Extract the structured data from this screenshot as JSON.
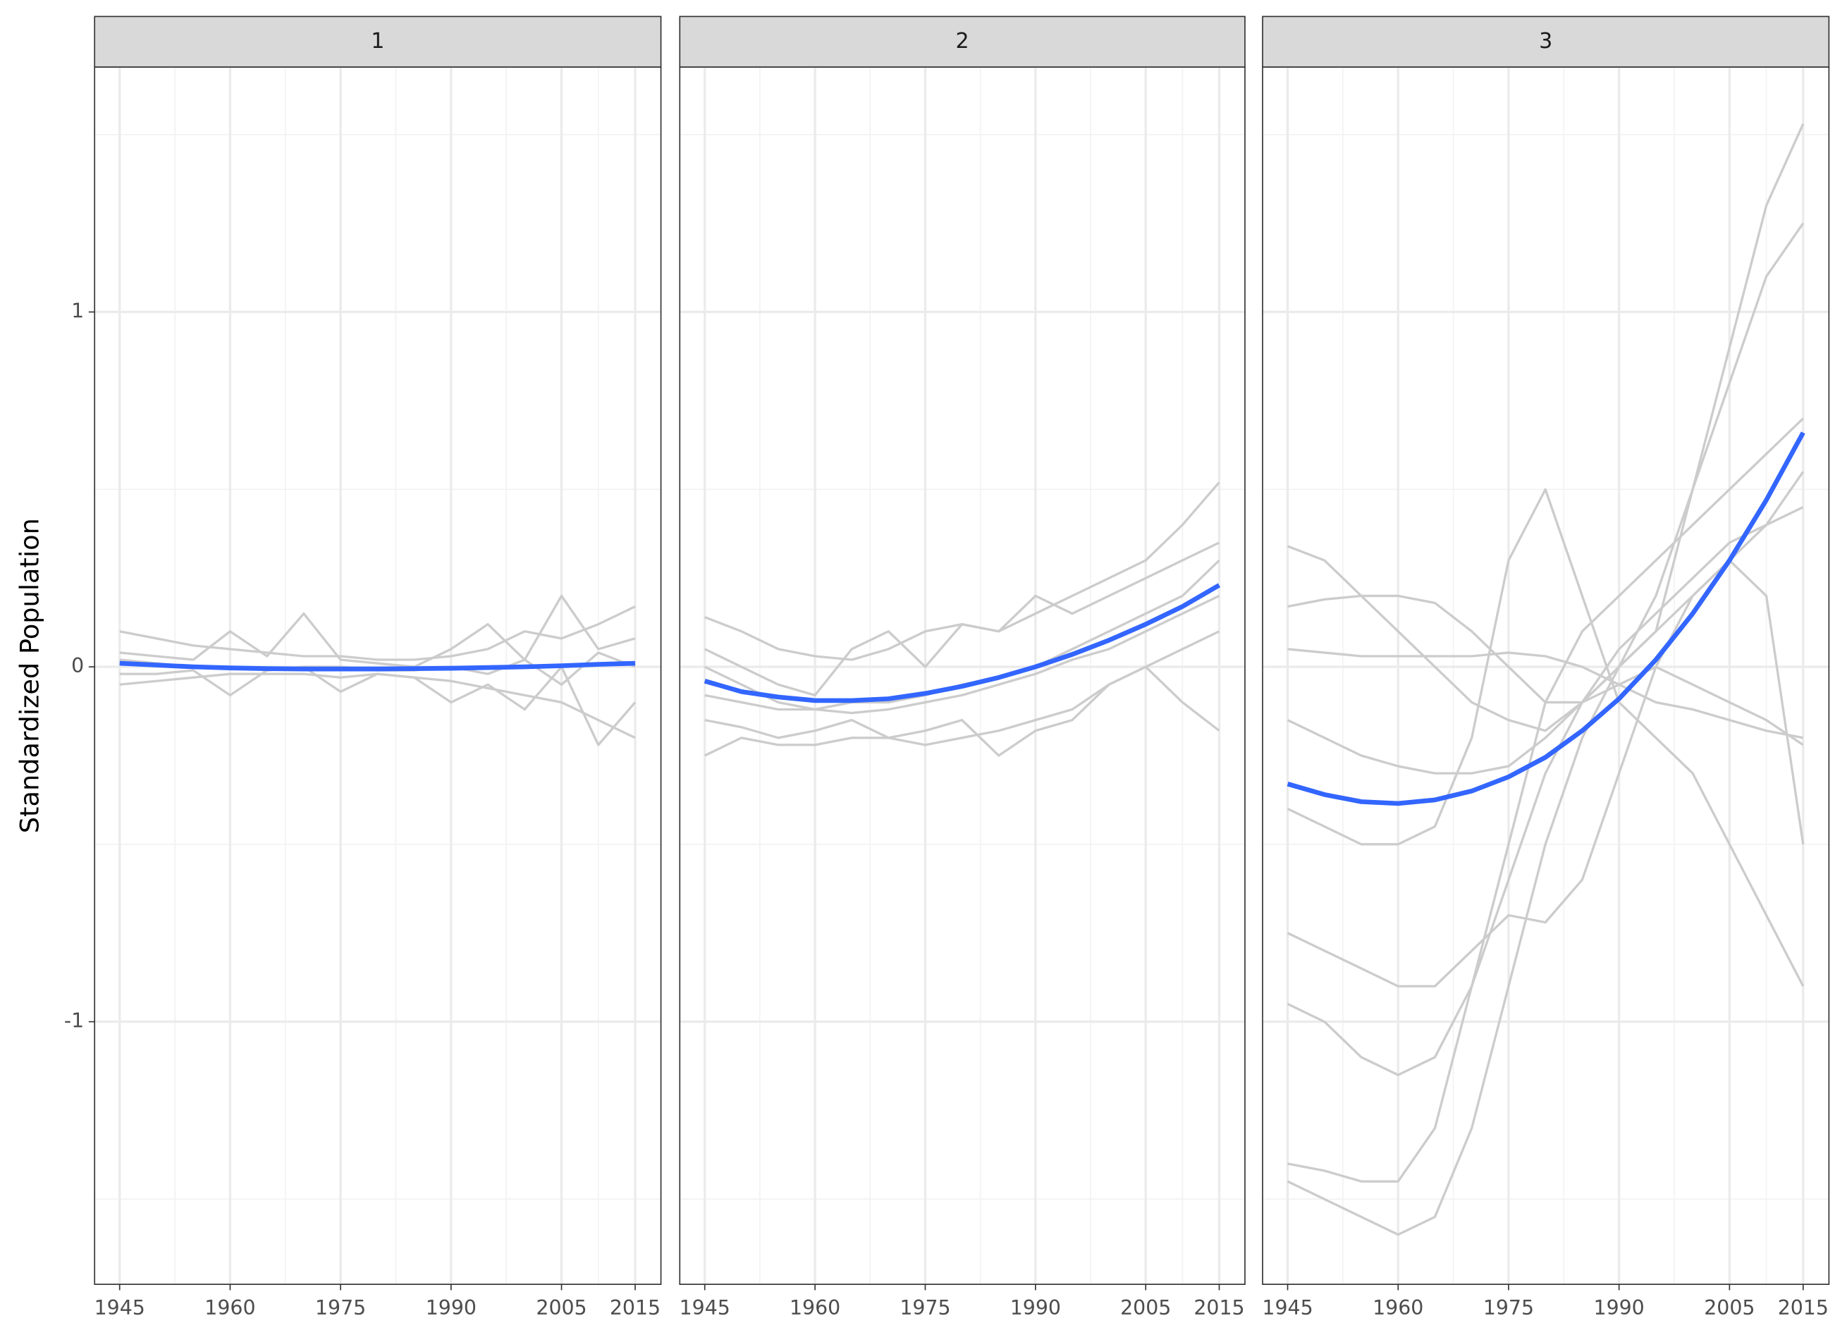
{
  "chart_data": [
    {
      "type": "line",
      "title": "1",
      "y_label": "Standardized Population",
      "x": [
        1945,
        1950,
        1955,
        1960,
        1965,
        1970,
        1975,
        1980,
        1985,
        1990,
        1995,
        2000,
        2005,
        2010,
        2015
      ],
      "xlim": [
        1941.6,
        2018.5
      ],
      "xticks": [
        1945,
        1960,
        1975,
        1990,
        2005,
        2015
      ],
      "x_minor_grid": [
        1952.5,
        1967.5,
        1982.5,
        1997.5,
        2010
      ],
      "ylim": [
        -1.74,
        1.69
      ],
      "yticks": [
        -1,
        0,
        1
      ],
      "y_minor_grid": [
        -1.5,
        -0.5,
        0.5,
        1.5
      ],
      "grid": true,
      "series": [
        {
          "color": "#cccccc",
          "values": [
            0.1,
            0.08,
            0.06,
            0.05,
            0.04,
            0.03,
            0.03,
            0.02,
            0.02,
            0.03,
            0.05,
            0.1,
            0.08,
            0.12,
            0.17
          ]
        },
        {
          "color": "#cccccc",
          "values": [
            -0.05,
            -0.04,
            -0.03,
            -0.02,
            -0.02,
            -0.02,
            -0.03,
            -0.02,
            -0.03,
            -0.04,
            -0.06,
            -0.08,
            -0.1,
            -0.15,
            -0.2
          ]
        },
        {
          "color": "#cccccc",
          "values": [
            0.04,
            0.03,
            0.02,
            0.1,
            0.03,
            0.15,
            0.02,
            0.01,
            0.0,
            0.05,
            0.12,
            0.02,
            0.2,
            0.05,
            0.08
          ]
        },
        {
          "color": "#cccccc",
          "values": [
            -0.02,
            -0.02,
            -0.01,
            -0.08,
            -0.01,
            0.0,
            -0.07,
            -0.02,
            -0.03,
            -0.1,
            -0.05,
            -0.12,
            0.0,
            -0.22,
            -0.1
          ]
        },
        {
          "color": "#cccccc",
          "values": [
            0.02,
            0.01,
            0.0,
            0.0,
            -0.01,
            0.0,
            0.0,
            -0.01,
            -0.01,
            0.0,
            -0.02,
            0.02,
            -0.05,
            0.04,
            0.0
          ]
        },
        {
          "color": "#3366ff",
          "values": [
            0.01,
            0.005,
            0.0,
            -0.003,
            -0.005,
            -0.006,
            -0.006,
            -0.006,
            -0.005,
            -0.004,
            -0.002,
            0.0,
            0.003,
            0.007,
            0.01
          ]
        }
      ]
    },
    {
      "type": "line",
      "title": "2",
      "x": [
        1945,
        1950,
        1955,
        1960,
        1965,
        1970,
        1975,
        1980,
        1985,
        1990,
        1995,
        2000,
        2005,
        2010,
        2015
      ],
      "xlim": [
        1941.6,
        2018.5
      ],
      "xticks": [
        1945,
        1960,
        1975,
        1990,
        2005,
        2015
      ],
      "x_minor_grid": [
        1952.5,
        1967.5,
        1982.5,
        1997.5,
        2010
      ],
      "ylim": [
        -1.74,
        1.69
      ],
      "yticks": [
        -1,
        0,
        1
      ],
      "y_minor_grid": [
        -1.5,
        -0.5,
        0.5,
        1.5
      ],
      "grid": true,
      "series": [
        {
          "color": "#cccccc",
          "values": [
            0.14,
            0.1,
            0.05,
            0.03,
            0.02,
            0.05,
            0.1,
            0.12,
            0.1,
            0.15,
            0.2,
            0.25,
            0.3,
            0.4,
            0.52
          ]
        },
        {
          "color": "#cccccc",
          "values": [
            -0.25,
            -0.2,
            -0.22,
            -0.22,
            -0.2,
            -0.2,
            -0.22,
            -0.2,
            -0.18,
            -0.15,
            -0.12,
            -0.05,
            0.0,
            0.05,
            0.1
          ]
        },
        {
          "color": "#cccccc",
          "values": [
            0.05,
            0.0,
            -0.05,
            -0.08,
            0.05,
            0.1,
            0.0,
            0.12,
            0.1,
            0.2,
            0.15,
            0.2,
            0.25,
            0.3,
            0.35
          ]
        },
        {
          "color": "#cccccc",
          "values": [
            -0.15,
            -0.17,
            -0.2,
            -0.18,
            -0.15,
            -0.2,
            -0.18,
            -0.15,
            -0.25,
            -0.18,
            -0.15,
            -0.05,
            0.0,
            -0.1,
            -0.18
          ]
        },
        {
          "color": "#cccccc",
          "values": [
            -0.08,
            -0.1,
            -0.12,
            -0.12,
            -0.1,
            -0.1,
            -0.08,
            -0.05,
            -0.03,
            0.0,
            0.05,
            0.1,
            0.15,
            0.2,
            0.3
          ]
        },
        {
          "color": "#cccccc",
          "values": [
            0.0,
            -0.05,
            -0.1,
            -0.12,
            -0.13,
            -0.12,
            -0.1,
            -0.08,
            -0.05,
            -0.02,
            0.02,
            0.05,
            0.1,
            0.15,
            0.2
          ]
        },
        {
          "color": "#3366ff",
          "values": [
            -0.04,
            -0.07,
            -0.085,
            -0.095,
            -0.095,
            -0.09,
            -0.075,
            -0.055,
            -0.03,
            0.0,
            0.035,
            0.075,
            0.12,
            0.17,
            0.23
          ]
        }
      ]
    },
    {
      "type": "line",
      "title": "3",
      "x": [
        1945,
        1950,
        1955,
        1960,
        1965,
        1970,
        1975,
        1980,
        1985,
        1990,
        1995,
        2000,
        2005,
        2010,
        2015
      ],
      "xlim": [
        1941.6,
        2018.5
      ],
      "xticks": [
        1945,
        1960,
        1975,
        1990,
        2005,
        2015
      ],
      "x_minor_grid": [
        1952.5,
        1967.5,
        1982.5,
        1997.5,
        2010
      ],
      "ylim": [
        -1.74,
        1.69
      ],
      "yticks": [
        -1,
        0,
        1
      ],
      "y_minor_grid": [
        -1.5,
        -0.5,
        0.5,
        1.5
      ],
      "grid": true,
      "series": [
        {
          "color": "#cccccc",
          "values": [
            0.34,
            0.3,
            0.2,
            0.1,
            0.0,
            -0.1,
            -0.15,
            -0.18,
            -0.1,
            0.0,
            0.1,
            0.5,
            0.9,
            1.3,
            1.53
          ]
        },
        {
          "color": "#cccccc",
          "values": [
            -1.45,
            -1.5,
            -1.55,
            -1.6,
            -1.55,
            -1.3,
            -0.9,
            -0.5,
            -0.2,
            0.0,
            0.2,
            0.5,
            0.8,
            1.1,
            1.25
          ]
        },
        {
          "color": "#cccccc",
          "values": [
            -1.4,
            -1.42,
            -1.45,
            -1.45,
            -1.3,
            -0.9,
            -0.5,
            -0.1,
            0.1,
            0.2,
            0.3,
            0.4,
            0.5,
            0.6,
            0.7
          ]
        },
        {
          "color": "#cccccc",
          "values": [
            0.17,
            0.19,
            0.2,
            0.2,
            0.18,
            0.1,
            0.0,
            -0.1,
            -0.1,
            -0.05,
            0.0,
            -0.05,
            -0.1,
            -0.15,
            -0.22
          ]
        },
        {
          "color": "#cccccc",
          "values": [
            -0.4,
            -0.45,
            -0.5,
            -0.5,
            -0.45,
            -0.2,
            0.3,
            0.5,
            0.2,
            -0.1,
            -0.2,
            -0.3,
            -0.5,
            -0.7,
            -0.9
          ]
        },
        {
          "color": "#cccccc",
          "values": [
            -0.75,
            -0.8,
            -0.85,
            -0.9,
            -0.9,
            -0.8,
            -0.7,
            -0.72,
            -0.6,
            -0.3,
            0.0,
            0.2,
            0.3,
            0.2,
            -0.5
          ]
        },
        {
          "color": "#cccccc",
          "values": [
            0.05,
            0.04,
            0.03,
            0.03,
            0.03,
            0.03,
            0.04,
            0.03,
            0.0,
            -0.05,
            -0.1,
            -0.12,
            -0.15,
            -0.18,
            -0.2
          ]
        },
        {
          "color": "#cccccc",
          "values": [
            -0.95,
            -1.0,
            -1.1,
            -1.15,
            -1.1,
            -0.9,
            -0.6,
            -0.3,
            -0.1,
            0.05,
            0.15,
            0.25,
            0.35,
            0.4,
            0.45
          ]
        },
        {
          "color": "#cccccc",
          "values": [
            -0.15,
            -0.2,
            -0.25,
            -0.28,
            -0.3,
            -0.3,
            -0.28,
            -0.2,
            -0.1,
            0.0,
            0.1,
            0.2,
            0.3,
            0.4,
            0.55
          ]
        },
        {
          "color": "#3366ff",
          "values": [
            -0.33,
            -0.36,
            -0.38,
            -0.385,
            -0.375,
            -0.35,
            -0.31,
            -0.255,
            -0.18,
            -0.09,
            0.02,
            0.15,
            0.3,
            0.47,
            0.66
          ]
        }
      ]
    }
  ]
}
